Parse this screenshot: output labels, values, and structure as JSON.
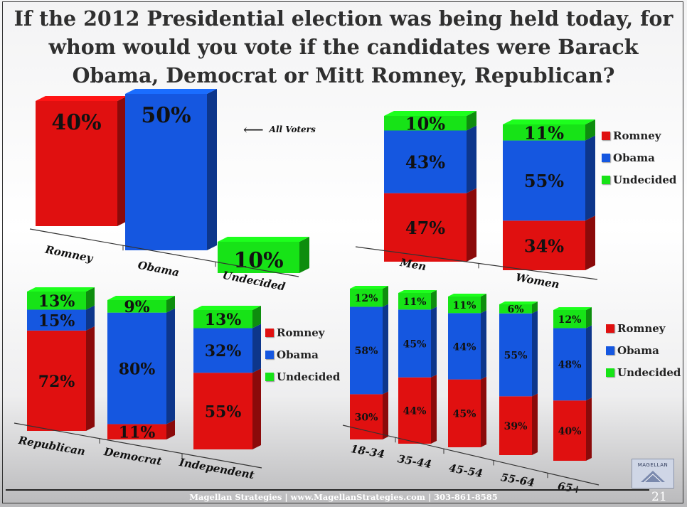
{
  "title": "If the 2012 Presidential election was being held today, for whom would you vote if the candidates were Barack Obama, Democrat or Mitt Romney, Republican?",
  "footer": "Magellan Strategies | www.MagellanStrategies.com | 303-861-8585",
  "page_number": "21",
  "logo": {
    "text": "MAGELLAN",
    "subtext": "STRATEGIES"
  },
  "annotation": "All Voters",
  "colors": {
    "Romney": "#e01010",
    "Obama": "#1557e0",
    "Undecided": "#17e317"
  },
  "legend": [
    "Romney",
    "Obama",
    "Undecided"
  ],
  "chart_data": [
    {
      "type": "bar",
      "title": "All Voters",
      "categories": [
        "Romney",
        "Obama",
        "Undecided"
      ],
      "values": [
        40,
        50,
        10
      ],
      "value_labels": [
        "40%",
        "50%",
        "10%"
      ],
      "colors": [
        "#e01010",
        "#1557e0",
        "#17e317"
      ]
    },
    {
      "type": "bar",
      "stacked": true,
      "categories": [
        "Men",
        "Women"
      ],
      "series": [
        {
          "name": "Romney",
          "values": [
            47,
            34
          ],
          "labels": [
            "47%",
            "34%"
          ]
        },
        {
          "name": "Obama",
          "values": [
            43,
            55
          ],
          "labels": [
            "43%",
            "55%"
          ]
        },
        {
          "name": "Undecided",
          "values": [
            10,
            11
          ],
          "labels": [
            "10%",
            "11%"
          ]
        }
      ]
    },
    {
      "type": "bar",
      "stacked": true,
      "categories": [
        "Republican",
        "Democrat",
        "Independent"
      ],
      "series": [
        {
          "name": "Romney",
          "values": [
            72,
            11,
            55
          ],
          "labels": [
            "72%",
            "11%",
            "55%"
          ]
        },
        {
          "name": "Obama",
          "values": [
            15,
            80,
            32
          ],
          "labels": [
            "15%",
            "80%",
            "32%"
          ]
        },
        {
          "name": "Undecided",
          "values": [
            13,
            9,
            13
          ],
          "labels": [
            "13%",
            "9%",
            "13%"
          ]
        }
      ]
    },
    {
      "type": "bar",
      "stacked": true,
      "categories": [
        "18-34",
        "35-44",
        "45-54",
        "55-64",
        "65+"
      ],
      "series": [
        {
          "name": "Romney",
          "values": [
            30,
            44,
            45,
            39,
            40
          ],
          "labels": [
            "30%",
            "44%",
            "45%",
            "39%",
            "40%"
          ]
        },
        {
          "name": "Obama",
          "values": [
            58,
            45,
            44,
            55,
            48
          ],
          "labels": [
            "58%",
            "45%",
            "44%",
            "55%",
            "48%"
          ]
        },
        {
          "name": "Undecided",
          "values": [
            12,
            11,
            11,
            6,
            12
          ],
          "labels": [
            "12%",
            "11%",
            "11%",
            "6%",
            "12%"
          ]
        }
      ]
    }
  ]
}
